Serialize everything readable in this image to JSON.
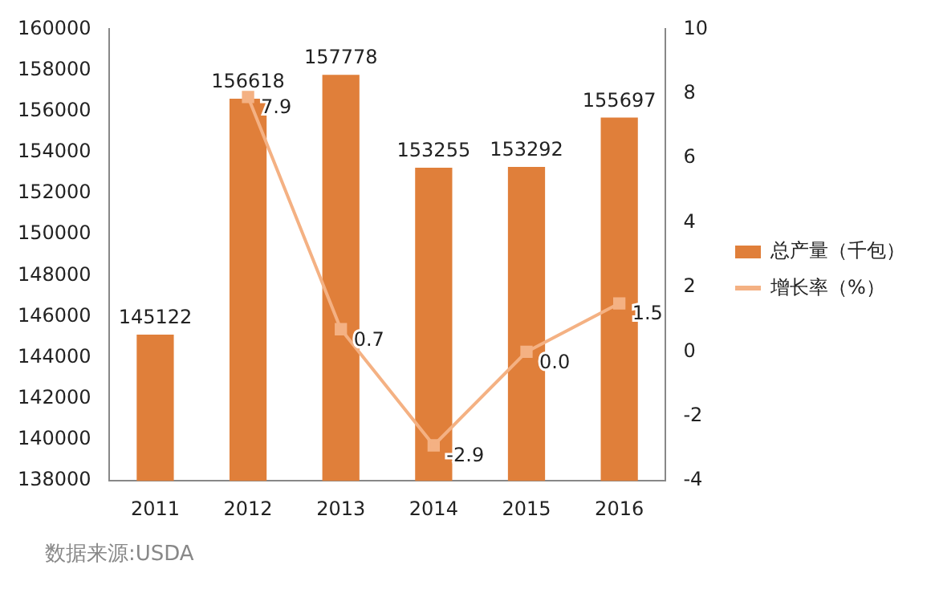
{
  "chart_data": {
    "type": "bar",
    "categories": [
      "2011",
      "2012",
      "2013",
      "2014",
      "2015",
      "2016"
    ],
    "series": [
      {
        "name": "总产量（千包）",
        "color": "#e07f3a",
        "values": [
          145122,
          156618,
          157778,
          153255,
          153292,
          155697
        ]
      },
      {
        "name": "增长率（%）",
        "type": "line",
        "axis": "y2",
        "color": "#f4b183",
        "marker": "square",
        "values": [
          null,
          7.9,
          0.7,
          -2.9,
          0.0,
          1.5
        ],
        "value_labels": [
          null,
          "7.9",
          "0.7",
          "-2.9",
          "0.0",
          "1.5"
        ]
      }
    ],
    "ylim": [
      138000,
      160000
    ],
    "yticks": [
      138000,
      140000,
      142000,
      144000,
      146000,
      148000,
      150000,
      152000,
      154000,
      156000,
      158000,
      160000
    ],
    "y2lim": [
      -4,
      10
    ],
    "y2ticks": [
      -4,
      -2,
      0,
      2,
      4,
      6,
      8,
      10
    ],
    "data_labels": true,
    "grid": false,
    "legend": "right",
    "annotations": [
      "数据来源:USDA"
    ]
  }
}
